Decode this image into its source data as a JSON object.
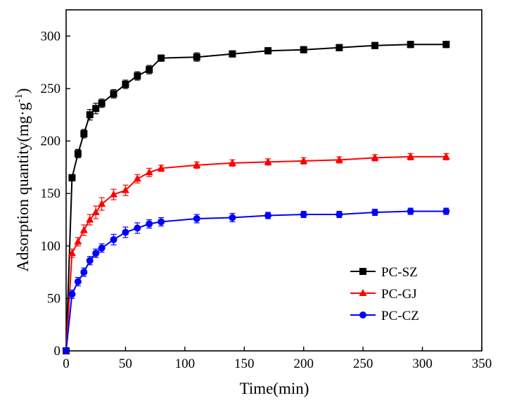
{
  "chart_data": {
    "type": "line",
    "xlabel": "Time(min)",
    "ylabel": "Adsorption quantity(mg·g",
    "ylabel_sup": "-1",
    "ylabel_close": ")",
    "xlim": [
      0,
      350
    ],
    "ylim": [
      0,
      325
    ],
    "xticks": [
      0,
      50,
      100,
      150,
      200,
      250,
      300,
      350
    ],
    "yticks": [
      0,
      50,
      100,
      150,
      200,
      250,
      300
    ],
    "grid": false,
    "legend_position": "bottom-right",
    "series": [
      {
        "name": "PC-SZ",
        "color": "#000000",
        "marker": "square",
        "x": [
          0,
          5,
          10,
          15,
          20,
          25,
          30,
          40,
          50,
          60,
          70,
          80,
          110,
          140,
          170,
          200,
          230,
          260,
          290,
          320
        ],
        "y": [
          0,
          165,
          188,
          207,
          225,
          231,
          236,
          245,
          254,
          262,
          268,
          279,
          280,
          283,
          286,
          287,
          289,
          291,
          292,
          292
        ],
        "err": [
          0,
          3,
          4,
          4,
          5,
          5,
          4,
          4,
          4,
          4,
          4,
          3,
          4,
          3,
          3,
          3,
          3,
          3,
          3,
          3
        ]
      },
      {
        "name": "PC-GJ",
        "color": "#ff0000",
        "marker": "triangle",
        "x": [
          0,
          5,
          10,
          15,
          20,
          25,
          30,
          40,
          50,
          60,
          70,
          80,
          110,
          140,
          170,
          200,
          230,
          260,
          290,
          320
        ],
        "y": [
          0,
          93,
          104,
          115,
          125,
          132,
          140,
          149,
          153,
          164,
          170,
          174,
          177,
          179,
          180,
          181,
          182,
          184,
          185,
          185
        ],
        "err": [
          0,
          4,
          4,
          5,
          5,
          6,
          6,
          5,
          5,
          4,
          4,
          3,
          3,
          3,
          3,
          3,
          3,
          3,
          3,
          3
        ]
      },
      {
        "name": "PC-CZ",
        "color": "#0000ff",
        "marker": "circle",
        "x": [
          0,
          5,
          10,
          15,
          20,
          25,
          30,
          40,
          50,
          60,
          70,
          80,
          110,
          140,
          170,
          200,
          230,
          260,
          290,
          320
        ],
        "y": [
          0,
          54,
          66,
          75,
          86,
          93,
          98,
          106,
          113,
          117,
          121,
          123,
          126,
          127,
          129,
          130,
          130,
          132,
          133,
          133
        ],
        "err": [
          0,
          4,
          4,
          4,
          4,
          4,
          4,
          5,
          5,
          5,
          4,
          4,
          4,
          4,
          3,
          3,
          3,
          3,
          3,
          3
        ]
      }
    ]
  }
}
